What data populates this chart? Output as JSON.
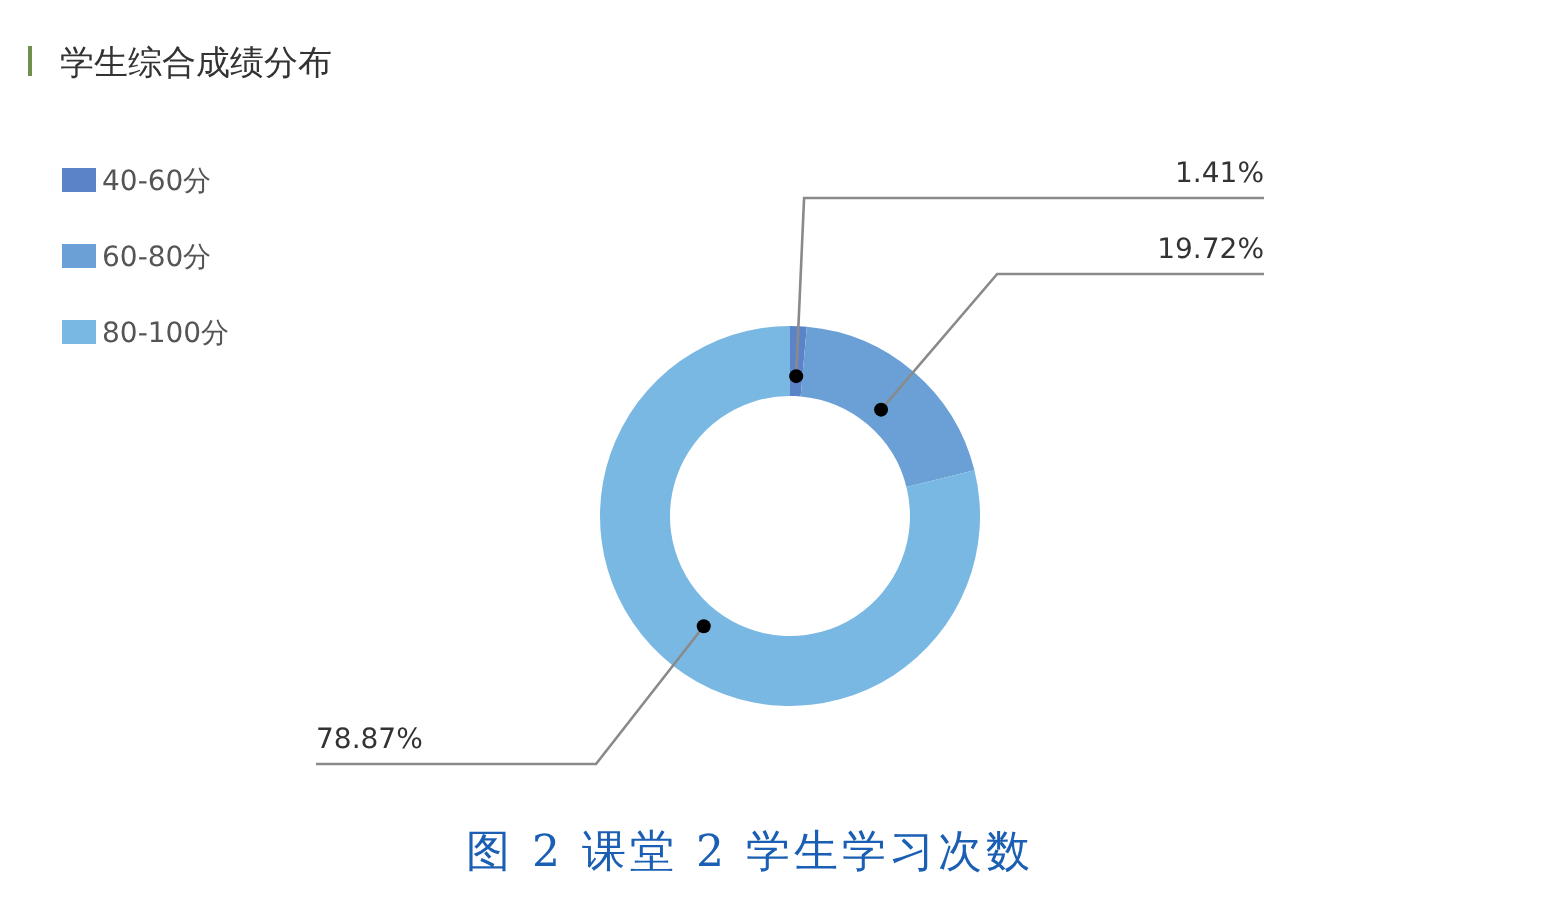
{
  "chart_data": {
    "type": "donut",
    "title": "学生综合成绩分布",
    "categories": [
      "40-60分",
      "60-80分",
      "80-100分"
    ],
    "values": [
      1.41,
      19.72,
      78.87
    ],
    "colors": [
      "#5b84c8",
      "#6aa0d6",
      "#7ab8e4"
    ],
    "value_labels": [
      "1.41%",
      "19.72%",
      "78.87%"
    ],
    "legend": "top left",
    "annotations": [
      "图 2 课堂 2 学生学习次数"
    ]
  }
}
